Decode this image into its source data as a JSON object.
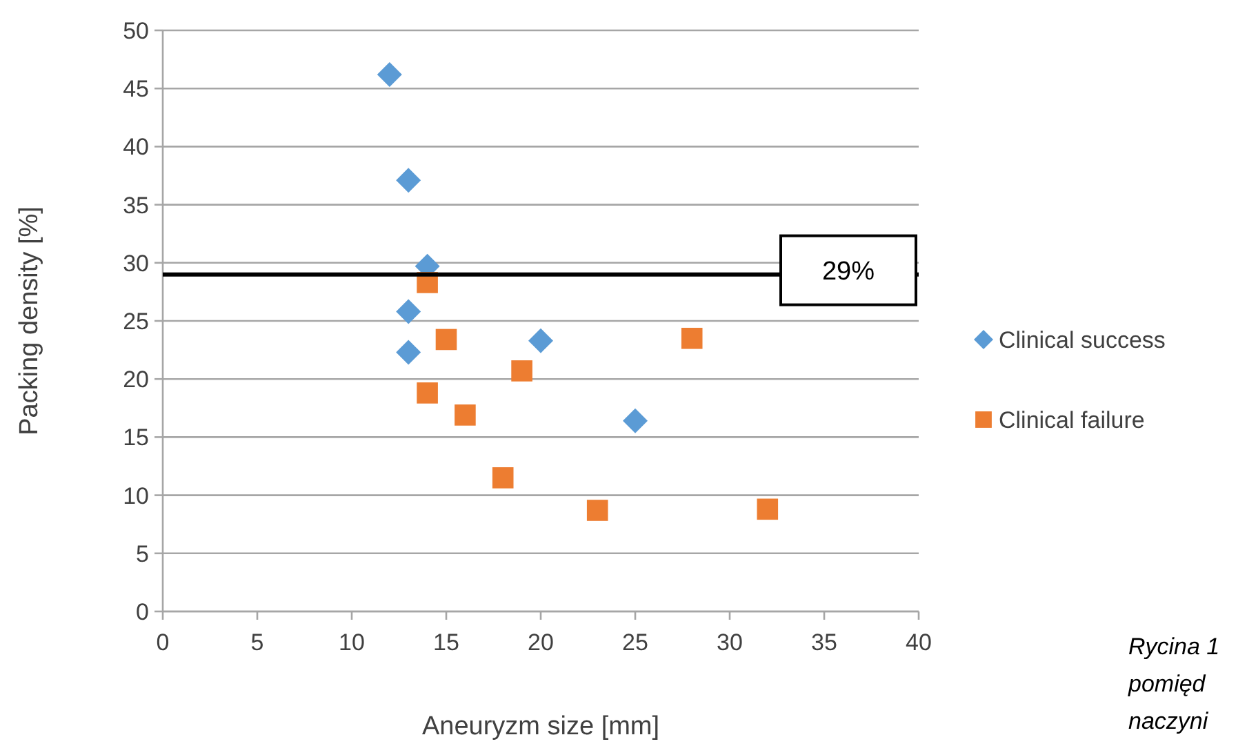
{
  "chart_data": {
    "type": "scatter",
    "xlabel": "Aneuryzm size [mm]",
    "ylabel": "Packing density [%]",
    "xlim": [
      0,
      40
    ],
    "xticks": [
      0,
      5,
      10,
      15,
      20,
      25,
      30,
      35,
      40
    ],
    "ylim": [
      0,
      50
    ],
    "yticks": [
      0,
      5,
      10,
      15,
      20,
      25,
      30,
      35,
      40,
      45,
      50
    ],
    "grid": "y",
    "legend": "right",
    "series": [
      {
        "name": "Clinical success",
        "color": "#5b9bd5",
        "marker": "diamond",
        "x": [
          12,
          13,
          13,
          13,
          14,
          20,
          25
        ],
        "values": [
          46.2,
          37.1,
          25.8,
          22.3,
          29.7,
          23.3,
          16.4
        ]
      },
      {
        "name": "Clinical failure",
        "color": "#ed7d31",
        "marker": "square",
        "x": [
          14,
          15,
          14,
          16,
          19,
          18,
          23,
          28,
          32
        ],
        "values": [
          28.3,
          23.4,
          18.8,
          16.9,
          20.7,
          11.5,
          8.7,
          23.5,
          8.8
        ]
      }
    ],
    "ref_lines": [
      {
        "axis": "y",
        "value": 29,
        "label": "29%",
        "color": "#000000"
      }
    ],
    "annotations": [
      "Rycina 1",
      "pomięd",
      "naczyni"
    ]
  }
}
